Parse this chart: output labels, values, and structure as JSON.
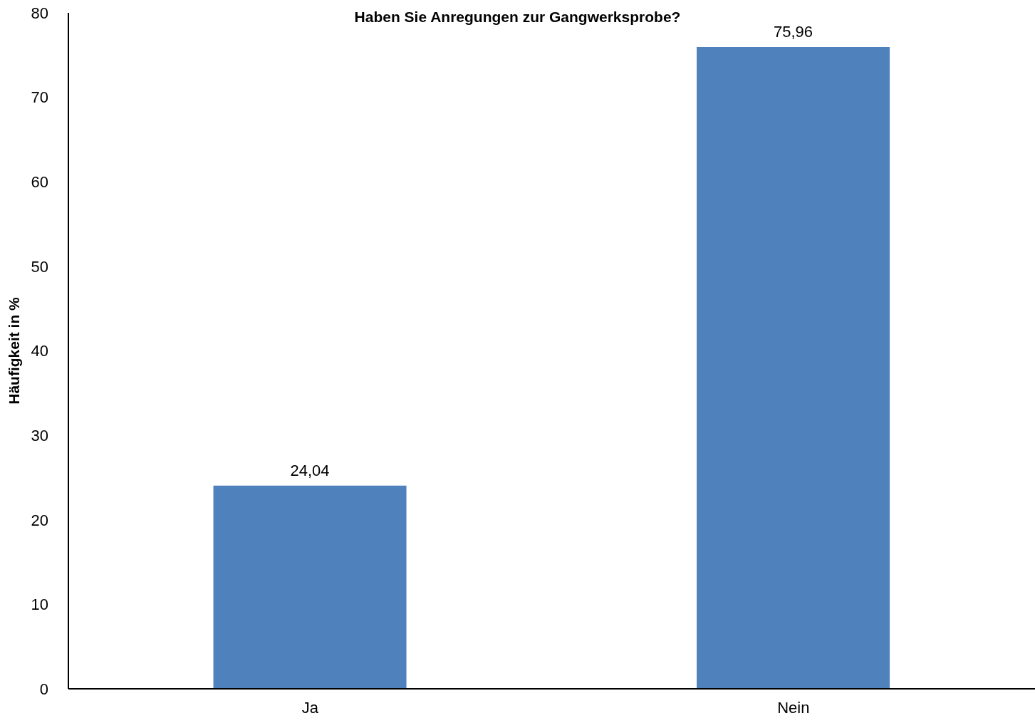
{
  "chart_data": {
    "type": "bar",
    "title": "Haben Sie Anregungen zur Gangwerksprobe?",
    "ylabel": "Häufigkeit in %",
    "categories": [
      "Ja",
      "Nein"
    ],
    "values": [
      24.04,
      75.96
    ],
    "value_labels": [
      "24,04",
      "75,96"
    ],
    "color": "#4f81bd",
    "ylim": [
      0,
      80
    ],
    "yticks": [
      0,
      10,
      20,
      30,
      40,
      50,
      60,
      70,
      80
    ],
    "grid": false
  }
}
